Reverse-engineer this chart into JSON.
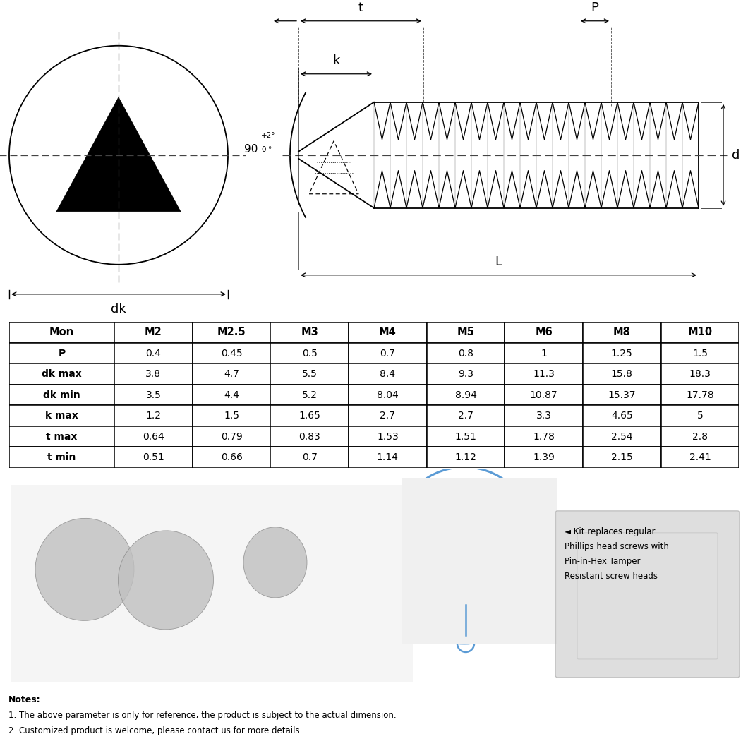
{
  "table_headers": [
    "Mon",
    "M2",
    "M2.5",
    "M3",
    "M4",
    "M5",
    "M6",
    "M8",
    "M10"
  ],
  "table_rows": [
    [
      "P",
      "0.4",
      "0.45",
      "0.5",
      "0.7",
      "0.8",
      "1",
      "1.25",
      "1.5"
    ],
    [
      "dk max",
      "3.8",
      "4.7",
      "5.5",
      "8.4",
      "9.3",
      "11.3",
      "15.8",
      "18.3"
    ],
    [
      "dk min",
      "3.5",
      "4.4",
      "5.2",
      "8.04",
      "8.94",
      "10.87",
      "15.37",
      "17.78"
    ],
    [
      "k max",
      "1.2",
      "1.5",
      "1.65",
      "2.7",
      "2.7",
      "3.3",
      "4.65",
      "5"
    ],
    [
      "t max",
      "0.64",
      "0.79",
      "0.83",
      "1.53",
      "1.51",
      "1.78",
      "2.54",
      "2.8"
    ],
    [
      "t min",
      "0.51",
      "0.66",
      "0.7",
      "1.14",
      "1.12",
      "1.39",
      "2.15",
      "2.41"
    ]
  ],
  "notes": [
    "Notes:",
    "1. The above parameter is only for reference, the product is subject to the actual dimension.",
    "2. Customized product is welcome, please contact us for more details."
  ],
  "kit_text": [
    "◄ Kit replaces regular",
    "Phillips head screws with",
    "Pin-in-Hex Tamper",
    "Resistant screw heads"
  ],
  "bg_color": "#ffffff",
  "line_color": "#000000",
  "circle_color": "#5b9bd5"
}
